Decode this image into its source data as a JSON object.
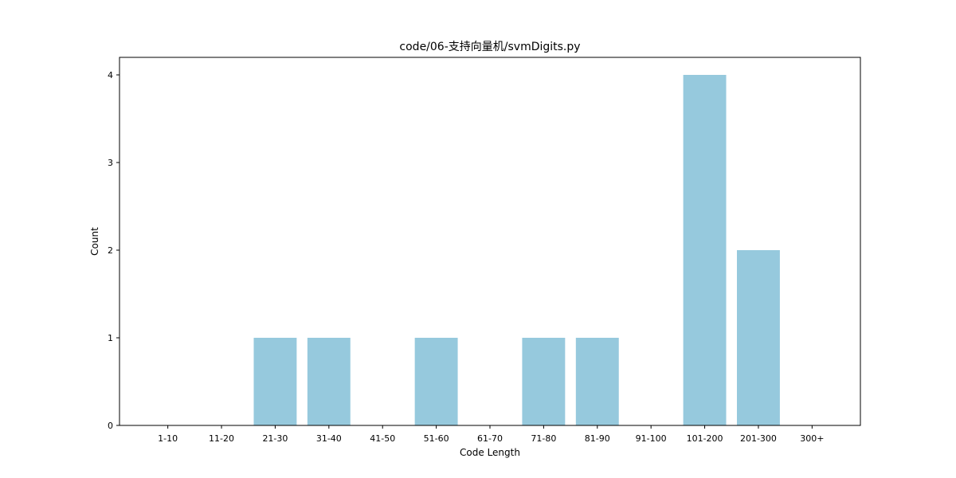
{
  "chart_data": {
    "type": "bar",
    "title": "code/06-支持向量机/svmDigits.py",
    "xlabel": "Code Length",
    "ylabel": "Count",
    "categories": [
      "1-10",
      "11-20",
      "21-30",
      "31-40",
      "41-50",
      "51-60",
      "61-70",
      "71-80",
      "81-90",
      "91-100",
      "101-200",
      "201-300",
      "300+"
    ],
    "values": [
      0,
      0,
      1,
      1,
      0,
      1,
      0,
      1,
      1,
      0,
      4,
      2,
      0
    ],
    "ylim": [
      0,
      4.2
    ],
    "yticks": [
      0,
      1,
      2,
      3,
      4
    ],
    "bar_color": "#96c9dd",
    "grid": false,
    "legend": "none"
  }
}
